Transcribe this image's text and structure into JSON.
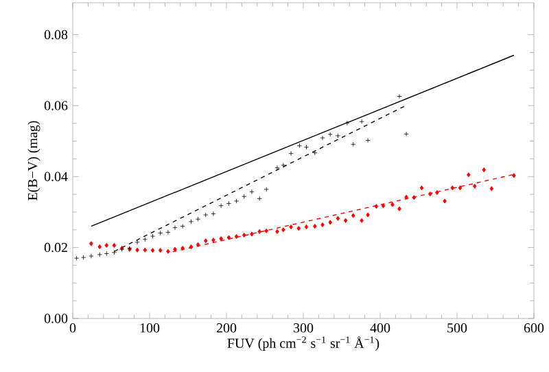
{
  "chart_data": {
    "type": "scatter",
    "xlabel": "FUV (ph cm$^{−2}$ s$^{−1}$ sr$^{−1}$ Å$^{−1}$)",
    "ylabel": "E(B−V) (mag)",
    "xlim": [
      0,
      600
    ],
    "ylim": [
      0,
      0.089
    ],
    "xticks": [
      0,
      100,
      200,
      300,
      400,
      500,
      600
    ],
    "yticks": [
      {
        "value": 0,
        "label": "0.00"
      },
      {
        "value": 0.02,
        "label": "0.02"
      },
      {
        "value": 0.04,
        "label": "0.04"
      },
      {
        "value": 0.06,
        "label": "0.06"
      },
      {
        "value": 0.08,
        "label": "0.08"
      }
    ],
    "series": [
      {
        "color": "#000000",
        "marker": "cross",
        "x": [
          5,
          14,
          24,
          35,
          44,
          54,
          64,
          74,
          84,
          94,
          104,
          114,
          124,
          133,
          143,
          154,
          163,
          173,
          183,
          193,
          203,
          213,
          223,
          233,
          243,
          252,
          266,
          274,
          284,
          295,
          304,
          315,
          325,
          335,
          345,
          357,
          365,
          376,
          384,
          425,
          434
        ],
        "values": [
          0.017,
          0.0172,
          0.0176,
          0.018,
          0.0183,
          0.0186,
          0.0195,
          0.0198,
          0.0215,
          0.0223,
          0.0232,
          0.0241,
          0.0243,
          0.0256,
          0.026,
          0.0273,
          0.028,
          0.0292,
          0.0295,
          0.0318,
          0.0324,
          0.0331,
          0.0344,
          0.0357,
          0.0338,
          0.0364,
          0.0425,
          0.0432,
          0.0465,
          0.0487,
          0.0483,
          0.0467,
          0.0509,
          0.0519,
          0.0515,
          0.0551,
          0.0491,
          0.0555,
          0.0502,
          0.0626,
          0.052
        ]
      },
      {
        "color": "#ff0000",
        "marker": "diamond",
        "x": [
          24,
          35,
          44,
          54,
          64,
          74,
          84,
          94,
          104,
          114,
          124,
          133,
          143,
          154,
          163,
          173,
          183,
          193,
          203,
          213,
          223,
          233,
          243,
          252,
          266,
          274,
          284,
          294,
          304,
          315,
          325,
          335,
          345,
          355,
          365,
          376,
          384,
          395,
          404,
          416,
          425,
          434,
          444,
          454,
          465,
          474,
          484,
          494,
          504,
          515,
          523,
          535,
          545,
          574
        ],
        "values": [
          0.0211,
          0.0202,
          0.0206,
          0.0206,
          0.0198,
          0.0195,
          0.0193,
          0.0193,
          0.0192,
          0.0192,
          0.0189,
          0.0195,
          0.0198,
          0.0202,
          0.0208,
          0.0219,
          0.0221,
          0.0225,
          0.0228,
          0.0231,
          0.0235,
          0.0238,
          0.0245,
          0.0247,
          0.0245,
          0.025,
          0.0258,
          0.0254,
          0.0258,
          0.026,
          0.0264,
          0.0271,
          0.0282,
          0.0276,
          0.029,
          0.0276,
          0.0292,
          0.0316,
          0.0318,
          0.0321,
          0.0309,
          0.0342,
          0.0341,
          0.0368,
          0.0351,
          0.0355,
          0.0331,
          0.0368,
          0.0368,
          0.0405,
          0.0373,
          0.0419,
          0.0366,
          0.0403
        ]
      },
      {
        "type": "line",
        "color": "#000000",
        "line_style": "solid",
        "x": [
          24,
          574
        ],
        "values": [
          0.026,
          0.0742
        ]
      },
      {
        "type": "line",
        "color": "#000000",
        "line_style": "dashed",
        "x": [
          54,
          434
        ],
        "values": [
          0.0189,
          0.0601
        ]
      },
      {
        "type": "line",
        "color": "#ff0000",
        "line_style": "dashed",
        "x": [
          130,
          574
        ],
        "values": [
          0.0188,
          0.0406
        ]
      }
    ]
  }
}
